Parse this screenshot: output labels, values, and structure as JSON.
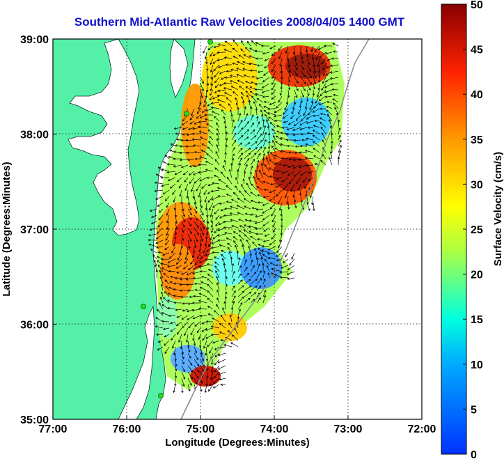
{
  "title": "Southern Mid-Atlantic Raw Velocities 2008/04/05 1400 GMT",
  "map": {
    "xlabel": "Longitude (Degrees:Minutes)",
    "ylabel": "Latitude (Degrees:Minutes)",
    "lon_ticks": [
      "77:00",
      "76:00",
      "75:00",
      "74:00",
      "73:00",
      "72:00"
    ],
    "lat_ticks": [
      "39:00",
      "38:00",
      "37:00",
      "36:00",
      "35:00"
    ],
    "lon_range": [
      -77,
      -72
    ],
    "lat_range": [
      35,
      39
    ],
    "land_color": "#55f0a8",
    "station_color": "#22dd22"
  },
  "colorbar": {
    "label": "Surface Velocity (cm/s)",
    "ticks": [
      "0",
      "5",
      "10",
      "15",
      "20",
      "25",
      "30",
      "35",
      "40",
      "45",
      "50"
    ],
    "range": [
      0,
      50
    ],
    "colormap": [
      "#0000ff",
      "#00ffff",
      "#ffff00",
      "#ff0000",
      "#800000"
    ]
  }
}
